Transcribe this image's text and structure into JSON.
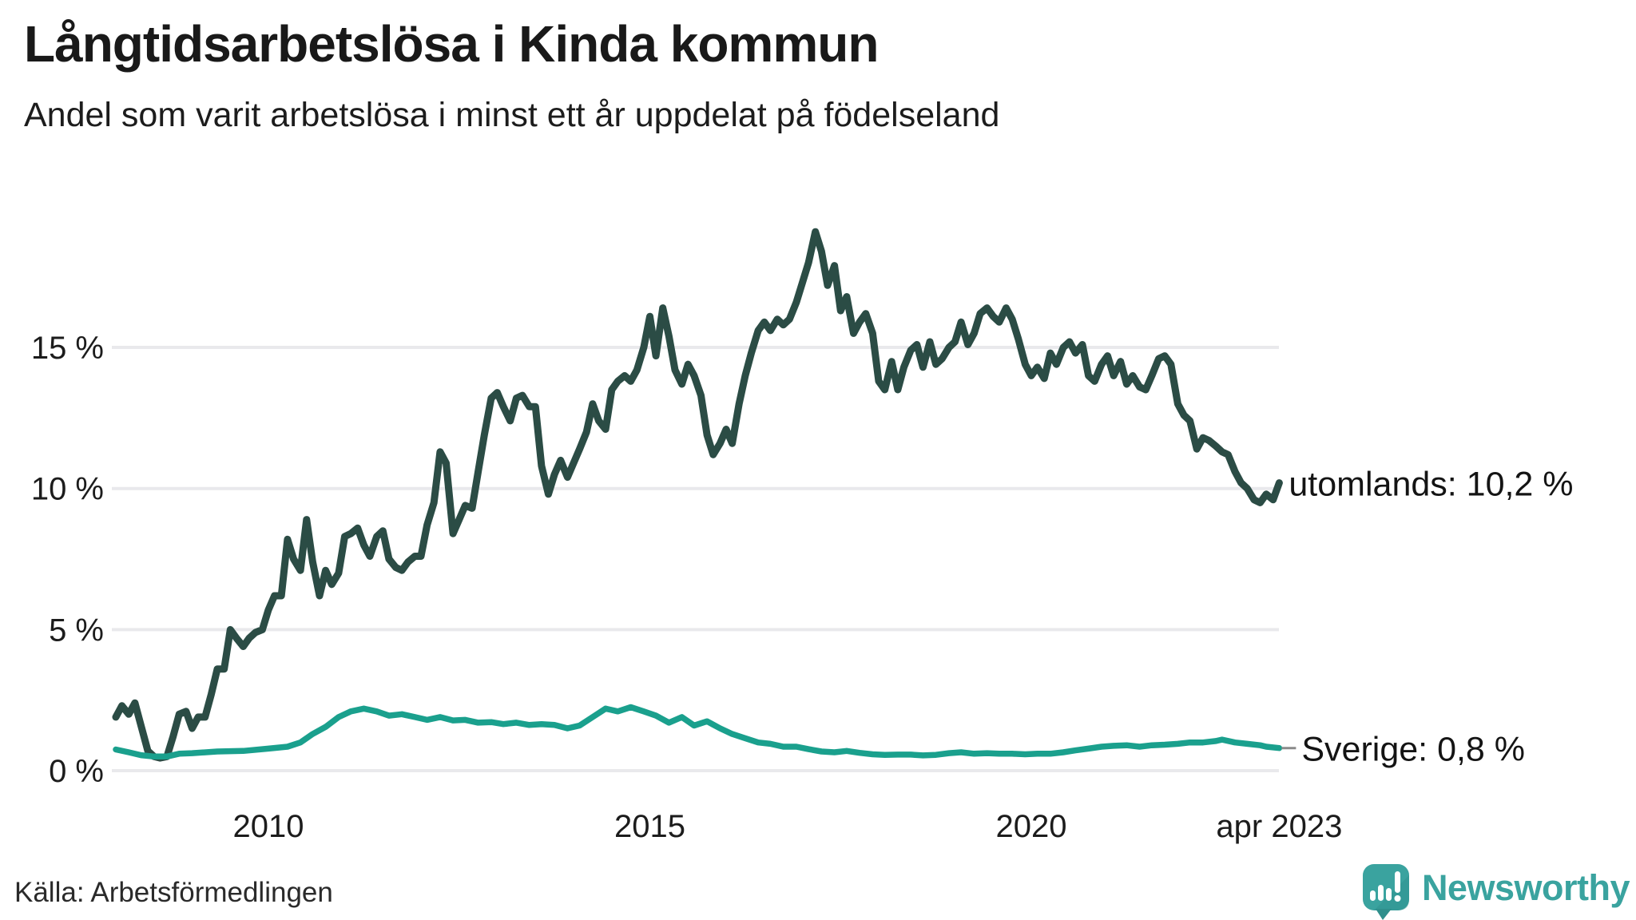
{
  "header": {
    "title": "Långtidsarbetslösa i Kinda kommun",
    "subtitle": "Andel som varit arbetslösa i minst ett år uppdelat på födelseland"
  },
  "chart_data": {
    "type": "line",
    "title": "Långtidsarbetslösa i Kinda kommun",
    "subtitle": "Andel som varit arbetslösa i minst ett år uppdelat på födelseland",
    "unit": "%",
    "grid": true,
    "legend_position": "end-of-line-labels",
    "x_axis": {
      "range_years": [
        2008.0,
        2023.25
      ],
      "ticks": [
        {
          "label": "2010",
          "year": 2010
        },
        {
          "label": "2015",
          "year": 2015
        },
        {
          "label": "2020",
          "year": 2020
        },
        {
          "label": "apr 2023",
          "year": 2023.25
        }
      ]
    },
    "y_axis": {
      "range": [
        0,
        19.5
      ],
      "ticks": [
        {
          "label": "15 %",
          "value": 15
        },
        {
          "label": "10 %",
          "value": 10
        },
        {
          "label": "5 %",
          "value": 5
        },
        {
          "label": "0 %",
          "value": 0
        }
      ]
    },
    "series": [
      {
        "name": "utomlands",
        "end_label": "utomlands: 10,2 %",
        "last_value": 10.2,
        "color": "#2b4c45",
        "points": [
          [
            2008.0,
            1.9
          ],
          [
            2008.08,
            2.3
          ],
          [
            2008.17,
            2.0
          ],
          [
            2008.25,
            2.4
          ],
          [
            2008.33,
            1.6
          ],
          [
            2008.42,
            0.7
          ],
          [
            2008.5,
            0.5
          ],
          [
            2008.58,
            0.45
          ],
          [
            2008.67,
            0.5
          ],
          [
            2008.75,
            1.2
          ],
          [
            2008.83,
            2.0
          ],
          [
            2008.92,
            2.1
          ],
          [
            2009.0,
            1.5
          ],
          [
            2009.08,
            1.9
          ],
          [
            2009.17,
            1.9
          ],
          [
            2009.25,
            2.7
          ],
          [
            2009.33,
            3.6
          ],
          [
            2009.42,
            3.6
          ],
          [
            2009.5,
            5.0
          ],
          [
            2009.58,
            4.7
          ],
          [
            2009.67,
            4.4
          ],
          [
            2009.75,
            4.7
          ],
          [
            2009.83,
            4.9
          ],
          [
            2009.92,
            5.0
          ],
          [
            2010.0,
            5.7
          ],
          [
            2010.08,
            6.2
          ],
          [
            2010.17,
            6.2
          ],
          [
            2010.25,
            8.2
          ],
          [
            2010.33,
            7.5
          ],
          [
            2010.42,
            7.1
          ],
          [
            2010.5,
            8.9
          ],
          [
            2010.58,
            7.4
          ],
          [
            2010.67,
            6.2
          ],
          [
            2010.75,
            7.1
          ],
          [
            2010.83,
            6.6
          ],
          [
            2010.92,
            7.0
          ],
          [
            2011.0,
            8.3
          ],
          [
            2011.08,
            8.4
          ],
          [
            2011.17,
            8.6
          ],
          [
            2011.25,
            8.0
          ],
          [
            2011.33,
            7.6
          ],
          [
            2011.42,
            8.3
          ],
          [
            2011.5,
            8.5
          ],
          [
            2011.58,
            7.5
          ],
          [
            2011.67,
            7.2
          ],
          [
            2011.75,
            7.1
          ],
          [
            2011.83,
            7.4
          ],
          [
            2011.92,
            7.6
          ],
          [
            2012.0,
            7.6
          ],
          [
            2012.08,
            8.7
          ],
          [
            2012.17,
            9.5
          ],
          [
            2012.25,
            11.3
          ],
          [
            2012.33,
            10.9
          ],
          [
            2012.42,
            8.4
          ],
          [
            2012.5,
            8.9
          ],
          [
            2012.58,
            9.4
          ],
          [
            2012.67,
            9.3
          ],
          [
            2012.75,
            10.6
          ],
          [
            2012.83,
            11.9
          ],
          [
            2012.92,
            13.2
          ],
          [
            2013.0,
            13.4
          ],
          [
            2013.08,
            12.9
          ],
          [
            2013.17,
            12.4
          ],
          [
            2013.25,
            13.2
          ],
          [
            2013.33,
            13.3
          ],
          [
            2013.42,
            12.9
          ],
          [
            2013.5,
            12.9
          ],
          [
            2013.58,
            10.8
          ],
          [
            2013.67,
            9.8
          ],
          [
            2013.75,
            10.5
          ],
          [
            2013.83,
            11.0
          ],
          [
            2013.92,
            10.4
          ],
          [
            2014.0,
            10.9
          ],
          [
            2014.08,
            11.4
          ],
          [
            2014.17,
            12.0
          ],
          [
            2014.25,
            13.0
          ],
          [
            2014.33,
            12.4
          ],
          [
            2014.42,
            12.1
          ],
          [
            2014.5,
            13.5
          ],
          [
            2014.58,
            13.8
          ],
          [
            2014.67,
            14.0
          ],
          [
            2014.75,
            13.8
          ],
          [
            2014.83,
            14.2
          ],
          [
            2014.92,
            15.0
          ],
          [
            2015.0,
            16.1
          ],
          [
            2015.08,
            14.7
          ],
          [
            2015.17,
            16.4
          ],
          [
            2015.25,
            15.4
          ],
          [
            2015.33,
            14.2
          ],
          [
            2015.42,
            13.7
          ],
          [
            2015.5,
            14.4
          ],
          [
            2015.58,
            14.0
          ],
          [
            2015.67,
            13.3
          ],
          [
            2015.75,
            11.9
          ],
          [
            2015.83,
            11.2
          ],
          [
            2015.92,
            11.6
          ],
          [
            2016.0,
            12.1
          ],
          [
            2016.08,
            11.6
          ],
          [
            2016.17,
            13.0
          ],
          [
            2016.25,
            14.0
          ],
          [
            2016.33,
            14.8
          ],
          [
            2016.42,
            15.6
          ],
          [
            2016.5,
            15.9
          ],
          [
            2016.58,
            15.6
          ],
          [
            2016.67,
            16.0
          ],
          [
            2016.75,
            15.8
          ],
          [
            2016.83,
            16.0
          ],
          [
            2016.92,
            16.6
          ],
          [
            2017.0,
            17.3
          ],
          [
            2017.08,
            18.0
          ],
          [
            2017.17,
            19.1
          ],
          [
            2017.25,
            18.4
          ],
          [
            2017.33,
            17.2
          ],
          [
            2017.42,
            17.9
          ],
          [
            2017.5,
            16.3
          ],
          [
            2017.58,
            16.8
          ],
          [
            2017.67,
            15.5
          ],
          [
            2017.75,
            15.9
          ],
          [
            2017.83,
            16.2
          ],
          [
            2017.92,
            15.5
          ],
          [
            2018.0,
            13.8
          ],
          [
            2018.08,
            13.5
          ],
          [
            2018.17,
            14.5
          ],
          [
            2018.25,
            13.5
          ],
          [
            2018.33,
            14.3
          ],
          [
            2018.42,
            14.9
          ],
          [
            2018.5,
            15.1
          ],
          [
            2018.58,
            14.3
          ],
          [
            2018.67,
            15.2
          ],
          [
            2018.75,
            14.4
          ],
          [
            2018.83,
            14.6
          ],
          [
            2018.92,
            15.0
          ],
          [
            2019.0,
            15.2
          ],
          [
            2019.08,
            15.9
          ],
          [
            2019.17,
            15.1
          ],
          [
            2019.25,
            15.5
          ],
          [
            2019.33,
            16.2
          ],
          [
            2019.42,
            16.4
          ],
          [
            2019.5,
            16.1
          ],
          [
            2019.58,
            15.9
          ],
          [
            2019.67,
            16.4
          ],
          [
            2019.75,
            16.0
          ],
          [
            2019.83,
            15.3
          ],
          [
            2019.92,
            14.4
          ],
          [
            2020.0,
            14.0
          ],
          [
            2020.08,
            14.3
          ],
          [
            2020.17,
            13.9
          ],
          [
            2020.25,
            14.8
          ],
          [
            2020.33,
            14.4
          ],
          [
            2020.42,
            15.0
          ],
          [
            2020.5,
            15.2
          ],
          [
            2020.58,
            14.8
          ],
          [
            2020.67,
            15.1
          ],
          [
            2020.75,
            14.0
          ],
          [
            2020.83,
            13.8
          ],
          [
            2020.92,
            14.4
          ],
          [
            2021.0,
            14.7
          ],
          [
            2021.08,
            14.0
          ],
          [
            2021.17,
            14.5
          ],
          [
            2021.25,
            13.7
          ],
          [
            2021.33,
            14.0
          ],
          [
            2021.42,
            13.6
          ],
          [
            2021.5,
            13.5
          ],
          [
            2021.58,
            14.0
          ],
          [
            2021.67,
            14.6
          ],
          [
            2021.75,
            14.7
          ],
          [
            2021.83,
            14.4
          ],
          [
            2021.92,
            13.0
          ],
          [
            2022.0,
            12.6
          ],
          [
            2022.08,
            12.4
          ],
          [
            2022.17,
            11.4
          ],
          [
            2022.25,
            11.8
          ],
          [
            2022.33,
            11.7
          ],
          [
            2022.42,
            11.5
          ],
          [
            2022.5,
            11.3
          ],
          [
            2022.58,
            11.2
          ],
          [
            2022.67,
            10.6
          ],
          [
            2022.75,
            10.2
          ],
          [
            2022.83,
            10.0
          ],
          [
            2022.92,
            9.6
          ],
          [
            2023.0,
            9.5
          ],
          [
            2023.08,
            9.8
          ],
          [
            2023.17,
            9.6
          ],
          [
            2023.25,
            10.2
          ]
        ]
      },
      {
        "name": "Sverige",
        "end_label": "Sverige:  0,8 %",
        "last_value": 0.8,
        "color": "#1aa08d",
        "points": [
          [
            2008.0,
            0.75
          ],
          [
            2008.17,
            0.65
          ],
          [
            2008.33,
            0.55
          ],
          [
            2008.5,
            0.5
          ],
          [
            2008.67,
            0.5
          ],
          [
            2008.83,
            0.6
          ],
          [
            2009.0,
            0.62
          ],
          [
            2009.33,
            0.68
          ],
          [
            2009.67,
            0.7
          ],
          [
            2010.0,
            0.78
          ],
          [
            2010.25,
            0.85
          ],
          [
            2010.42,
            1.0
          ],
          [
            2010.58,
            1.3
          ],
          [
            2010.75,
            1.55
          ],
          [
            2010.92,
            1.9
          ],
          [
            2011.08,
            2.1
          ],
          [
            2011.25,
            2.2
          ],
          [
            2011.42,
            2.1
          ],
          [
            2011.58,
            1.95
          ],
          [
            2011.75,
            2.0
          ],
          [
            2011.92,
            1.9
          ],
          [
            2012.08,
            1.8
          ],
          [
            2012.25,
            1.9
          ],
          [
            2012.42,
            1.78
          ],
          [
            2012.58,
            1.8
          ],
          [
            2012.75,
            1.7
          ],
          [
            2012.92,
            1.72
          ],
          [
            2013.08,
            1.65
          ],
          [
            2013.25,
            1.7
          ],
          [
            2013.42,
            1.62
          ],
          [
            2013.58,
            1.65
          ],
          [
            2013.75,
            1.62
          ],
          [
            2013.92,
            1.5
          ],
          [
            2014.08,
            1.6
          ],
          [
            2014.25,
            1.9
          ],
          [
            2014.42,
            2.2
          ],
          [
            2014.58,
            2.1
          ],
          [
            2014.75,
            2.25
          ],
          [
            2014.92,
            2.1
          ],
          [
            2015.08,
            1.95
          ],
          [
            2015.25,
            1.7
          ],
          [
            2015.42,
            1.9
          ],
          [
            2015.58,
            1.6
          ],
          [
            2015.75,
            1.75
          ],
          [
            2015.92,
            1.5
          ],
          [
            2016.08,
            1.3
          ],
          [
            2016.25,
            1.15
          ],
          [
            2016.42,
            1.0
          ],
          [
            2016.58,
            0.95
          ],
          [
            2016.75,
            0.85
          ],
          [
            2016.92,
            0.85
          ],
          [
            2017.08,
            0.76
          ],
          [
            2017.25,
            0.68
          ],
          [
            2017.42,
            0.65
          ],
          [
            2017.58,
            0.7
          ],
          [
            2017.75,
            0.63
          ],
          [
            2017.92,
            0.58
          ],
          [
            2018.08,
            0.56
          ],
          [
            2018.25,
            0.57
          ],
          [
            2018.42,
            0.57
          ],
          [
            2018.58,
            0.54
          ],
          [
            2018.75,
            0.56
          ],
          [
            2018.92,
            0.62
          ],
          [
            2019.08,
            0.65
          ],
          [
            2019.25,
            0.6
          ],
          [
            2019.42,
            0.62
          ],
          [
            2019.58,
            0.6
          ],
          [
            2019.75,
            0.6
          ],
          [
            2019.92,
            0.58
          ],
          [
            2020.08,
            0.6
          ],
          [
            2020.25,
            0.6
          ],
          [
            2020.42,
            0.65
          ],
          [
            2020.58,
            0.72
          ],
          [
            2020.75,
            0.78
          ],
          [
            2020.92,
            0.85
          ],
          [
            2021.08,
            0.88
          ],
          [
            2021.25,
            0.9
          ],
          [
            2021.42,
            0.85
          ],
          [
            2021.58,
            0.9
          ],
          [
            2021.75,
            0.92
          ],
          [
            2021.92,
            0.95
          ],
          [
            2022.08,
            1.0
          ],
          [
            2022.25,
            1.0
          ],
          [
            2022.42,
            1.05
          ],
          [
            2022.5,
            1.1
          ],
          [
            2022.67,
            1.0
          ],
          [
            2022.83,
            0.95
          ],
          [
            2023.0,
            0.9
          ],
          [
            2023.08,
            0.85
          ],
          [
            2023.25,
            0.8
          ]
        ]
      }
    ],
    "colors": {
      "grid": "#e9e9ec",
      "utomlands_line": "#2b4c45",
      "sverige_line": "#1aa08d",
      "leader_dash": "#8a8a8a"
    }
  },
  "footer": {
    "source": "Källa: Arbetsförmedlingen",
    "brand": "Newsworthy",
    "brand_color": "#3aa39f"
  }
}
